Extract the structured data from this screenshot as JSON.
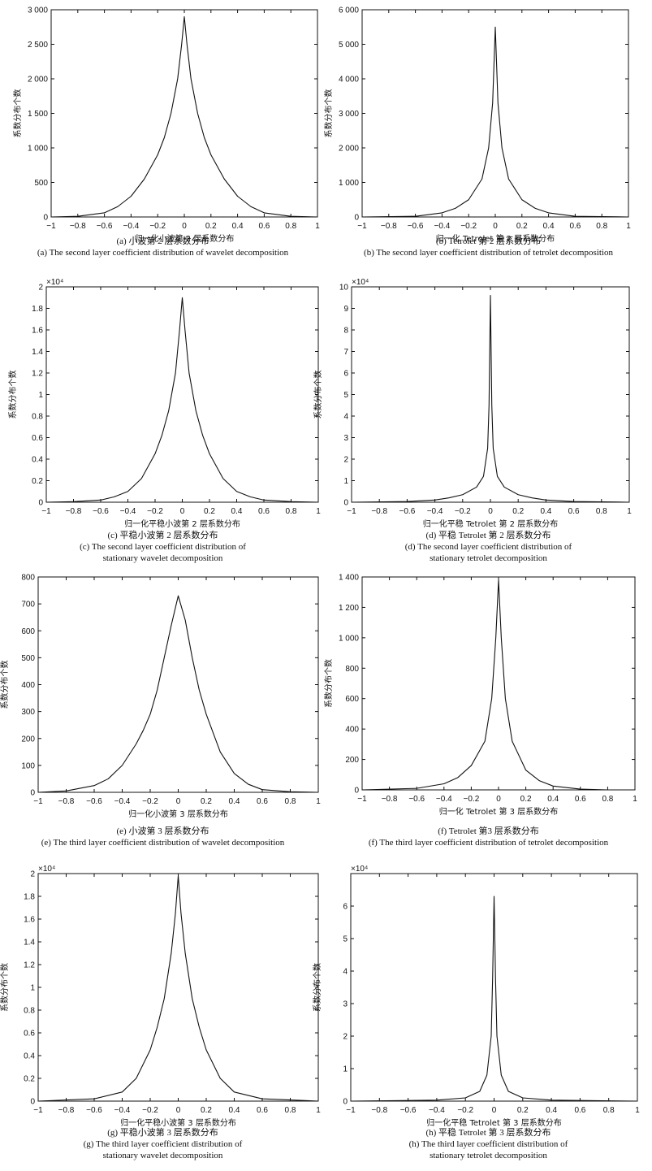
{
  "chart_data": [
    {
      "type": "line",
      "panel": "a",
      "xlabel": "归一化小波第 2 层系数分布",
      "ylabel": "系数分布个数",
      "xlim": [
        -1,
        1
      ],
      "ylim": [
        0,
        3000
      ],
      "xticks": [
        "−1",
        "−0.8",
        "−0.6",
        "−0.4",
        "−0.2",
        "0",
        "0.2",
        "0.4",
        "0.6",
        "0.8",
        "1"
      ],
      "yticks": [
        "0",
        "500",
        "1 000",
        "1 500",
        "2 000",
        "2 500",
        "3 000"
      ],
      "ytick_values": [
        0,
        500,
        1000,
        1500,
        2000,
        2500,
        3000
      ],
      "exponent": "",
      "caption_cn": "(a) 小波第 2 层系数分布",
      "caption_en": [
        "(a) The second layer coefficient distribution of wavelet decomposition"
      ],
      "x": [
        -1,
        -0.8,
        -0.6,
        -0.5,
        -0.4,
        -0.3,
        -0.2,
        -0.15,
        -0.1,
        -0.05,
        -0.02,
        0,
        0.02,
        0.05,
        0.1,
        0.15,
        0.2,
        0.3,
        0.4,
        0.5,
        0.6,
        0.8,
        1
      ],
      "y": [
        0,
        10,
        60,
        150,
        300,
        550,
        900,
        1150,
        1500,
        2000,
        2500,
        2900,
        2500,
        2000,
        1500,
        1150,
        900,
        550,
        300,
        150,
        60,
        10,
        0
      ]
    },
    {
      "type": "line",
      "panel": "b",
      "xlabel": "归一化 Tetrolet 第 2 层系数分布",
      "ylabel": "系数分布个数",
      "xlim": [
        -1,
        1
      ],
      "ylim": [
        0,
        6000
      ],
      "xticks": [
        "−1",
        "−0.8",
        "−0.6",
        "−0.4",
        "−0.2",
        "0",
        "0.2",
        "0.4",
        "0.6",
        "0.8",
        "1"
      ],
      "yticks": [
        "0",
        "1 000",
        "2 000",
        "3 000",
        "4 000",
        "5 000",
        "6 000"
      ],
      "ytick_values": [
        0,
        1000,
        2000,
        3000,
        4000,
        5000,
        6000
      ],
      "exponent": "",
      "caption_cn": "(b) Tetrolet 第 2 层系数分布",
      "caption_en": [
        "(b) The second layer coefficient distribution of tetrolet decomposition"
      ],
      "x": [
        -1,
        -0.6,
        -0.4,
        -0.3,
        -0.2,
        -0.1,
        -0.05,
        -0.02,
        0,
        0.02,
        0.05,
        0.1,
        0.2,
        0.3,
        0.4,
        0.6,
        1
      ],
      "y": [
        0,
        20,
        120,
        250,
        500,
        1100,
        2000,
        3300,
        5500,
        3300,
        2000,
        1100,
        500,
        250,
        120,
        20,
        0
      ]
    },
    {
      "type": "line",
      "panel": "c",
      "xlabel": "归一化平稳小波第 2 层系数分布",
      "ylabel": "系数分布个数",
      "xlim": [
        -1,
        1
      ],
      "ylim": [
        0,
        2
      ],
      "xticks": [
        "−1",
        "−0.8",
        "−0.6",
        "−0.4",
        "−0.2",
        "0",
        "0.2",
        "0.4",
        "0.6",
        "0.8",
        "1"
      ],
      "yticks": [
        "0",
        "0.2",
        "0.4",
        "0.6",
        "0.8",
        "1",
        "1.2",
        "1.4",
        "1.6",
        "1.8",
        "2"
      ],
      "ytick_values": [
        0,
        0.2,
        0.4,
        0.6,
        0.8,
        1,
        1.2,
        1.4,
        1.6,
        1.8,
        2
      ],
      "exponent": "×10⁴",
      "caption_cn": "(c) 平稳小波第 2 层系数分布",
      "caption_en": [
        "(c) The second layer coefficient distribution of",
        "stationary wavelet decomposition"
      ],
      "x": [
        -1,
        -0.8,
        -0.6,
        -0.5,
        -0.4,
        -0.3,
        -0.2,
        -0.15,
        -0.1,
        -0.05,
        -0.02,
        0,
        0.02,
        0.05,
        0.1,
        0.15,
        0.2,
        0.3,
        0.4,
        0.5,
        0.6,
        0.8,
        1
      ],
      "y": [
        0,
        0.005,
        0.02,
        0.05,
        0.1,
        0.22,
        0.45,
        0.62,
        0.85,
        1.2,
        1.6,
        1.9,
        1.6,
        1.2,
        0.85,
        0.62,
        0.45,
        0.22,
        0.1,
        0.05,
        0.02,
        0.005,
        0
      ]
    },
    {
      "type": "line",
      "panel": "d",
      "xlabel": "归一化平稳  Tetrolet 第 2 层系数分布",
      "ylabel": "系数分布个数",
      "xlim": [
        -1,
        1
      ],
      "ylim": [
        0,
        10
      ],
      "xticks": [
        "−1",
        "−0.8",
        "−0.6",
        "−0.4",
        "−0.2",
        "0",
        "0.2",
        "0.4",
        "0.6",
        "0.8",
        "1"
      ],
      "yticks": [
        "0",
        "1",
        "2",
        "3",
        "4",
        "5",
        "6",
        "7",
        "8",
        "9",
        "10"
      ],
      "ytick_values": [
        0,
        1,
        2,
        3,
        4,
        5,
        6,
        7,
        8,
        9,
        10
      ],
      "exponent": "×10⁴",
      "caption_cn": "(d) 平稳 Tetrolet 第 2 层系数分布",
      "caption_en": [
        "(d) The second layer coefficient distribution of",
        "stationary tetrolet decomposition"
      ],
      "x": [
        -1,
        -0.6,
        -0.4,
        -0.3,
        -0.2,
        -0.1,
        -0.05,
        -0.02,
        -0.01,
        0,
        0.01,
        0.02,
        0.05,
        0.1,
        0.2,
        0.3,
        0.4,
        0.6,
        1
      ],
      "y": [
        0,
        0.03,
        0.1,
        0.2,
        0.35,
        0.7,
        1.2,
        2.5,
        4.5,
        9.6,
        4.5,
        2.5,
        1.2,
        0.7,
        0.35,
        0.2,
        0.1,
        0.03,
        0
      ]
    },
    {
      "type": "line",
      "panel": "e",
      "xlabel": "归一化小波第 3 层系数分布",
      "ylabel": "系数分布个数",
      "xlim": [
        -1,
        1
      ],
      "ylim": [
        0,
        800
      ],
      "xticks": [
        "−1",
        "−0.8",
        "−0.6",
        "−0.4",
        "−0.2",
        "0",
        "0.2",
        "0.4",
        "0.6",
        "0.8",
        "1"
      ],
      "yticks": [
        "0",
        "100",
        "200",
        "300",
        "400",
        "500",
        "600",
        "700",
        "800"
      ],
      "ytick_values": [
        0,
        100,
        200,
        300,
        400,
        500,
        600,
        700,
        800
      ],
      "exponent": "",
      "caption_cn": "(e) 小波第 3 层系数分布",
      "caption_en": [
        "(e) The third layer coefficient distribution of wavelet decomposition"
      ],
      "x": [
        -1,
        -0.8,
        -0.6,
        -0.5,
        -0.4,
        -0.3,
        -0.25,
        -0.2,
        -0.15,
        -0.1,
        -0.05,
        0,
        0.05,
        0.1,
        0.15,
        0.2,
        0.25,
        0.3,
        0.4,
        0.5,
        0.6,
        0.8,
        1
      ],
      "y": [
        0,
        5,
        25,
        50,
        100,
        180,
        230,
        290,
        380,
        500,
        620,
        730,
        640,
        500,
        380,
        290,
        220,
        150,
        70,
        30,
        10,
        2,
        0
      ]
    },
    {
      "type": "line",
      "panel": "f",
      "xlabel": "归一化 Tetrolet 第 3 层系数分布",
      "ylabel": "系数分布个数",
      "xlim": [
        -1,
        1
      ],
      "ylim": [
        0,
        1400
      ],
      "xticks": [
        "−1",
        "−0.8",
        "−0.6",
        "−0.4",
        "−0.2",
        "0",
        "0.2",
        "0.4",
        "0.6",
        "0.8",
        "1"
      ],
      "yticks": [
        "0",
        "200",
        "400",
        "600",
        "800",
        "1 000",
        "1 200",
        "1 400"
      ],
      "ytick_values": [
        0,
        200,
        400,
        600,
        800,
        1000,
        1200,
        1400
      ],
      "exponent": "",
      "caption_cn": "(f) Tetrolet 第3 层系数分布",
      "caption_en": [
        "(f) The third layer coefficient distribution of tetrolet decomposition"
      ],
      "x": [
        -1,
        -0.6,
        -0.4,
        -0.3,
        -0.2,
        -0.1,
        -0.05,
        -0.02,
        0,
        0.02,
        0.05,
        0.1,
        0.2,
        0.3,
        0.4,
        0.6,
        0.8,
        1
      ],
      "y": [
        0,
        10,
        40,
        80,
        160,
        320,
        600,
        1000,
        1380,
        1000,
        600,
        320,
        130,
        60,
        25,
        5,
        0,
        0
      ]
    },
    {
      "type": "line",
      "panel": "g",
      "xlabel": "归一化平稳小波第 3 层系数分布",
      "ylabel": "系数分布个数",
      "xlim": [
        -1,
        1
      ],
      "ylim": [
        0,
        2
      ],
      "xticks": [
        "−1",
        "−0.8",
        "−0.6",
        "−0.4",
        "−0.2",
        "0",
        "0.2",
        "0.4",
        "0.6",
        "0.8",
        "1"
      ],
      "yticks": [
        "0",
        "0.2",
        "0.4",
        "0.6",
        "0.8",
        "1",
        "1.2",
        "1.4",
        "1.6",
        "1.8",
        "2"
      ],
      "ytick_values": [
        0,
        0.2,
        0.4,
        0.6,
        0.8,
        1,
        1.2,
        1.4,
        1.6,
        1.8,
        2
      ],
      "exponent": "×10⁴",
      "caption_cn": "(g) 平稳小波第 3 层系数分布",
      "caption_en": [
        "(g) The third layer coefficient distribution of",
        "stationary wavelet decomposition"
      ],
      "x": [
        -1,
        -0.6,
        -0.4,
        -0.3,
        -0.2,
        -0.15,
        -0.1,
        -0.05,
        -0.02,
        0,
        0.02,
        0.05,
        0.1,
        0.15,
        0.2,
        0.3,
        0.4,
        0.6,
        1
      ],
      "y": [
        0,
        0.02,
        0.08,
        0.2,
        0.45,
        0.65,
        0.9,
        1.3,
        1.65,
        1.98,
        1.65,
        1.3,
        0.9,
        0.65,
        0.45,
        0.2,
        0.08,
        0.02,
        0
      ]
    },
    {
      "type": "line",
      "panel": "h",
      "xlabel": "归一化平稳 Tetrolet 第 3 层系数分布",
      "ylabel": "系数分布个数",
      "xlim": [
        -1,
        1
      ],
      "ylim": [
        0,
        7
      ],
      "xticks": [
        "−1",
        "−0.8",
        "−0.6",
        "−0.4",
        "−0.2",
        "0",
        "0.2",
        "0.4",
        "0.6",
        "0.8",
        "1"
      ],
      "yticks": [
        "0",
        "1",
        "2",
        "3",
        "4",
        "5",
        "6"
      ],
      "ytick_values": [
        0,
        1,
        2,
        3,
        4,
        5,
        6
      ],
      "exponent": "×10⁴",
      "caption_cn": "(h) 平稳 Tetrolet 第 3 层系数分布",
      "caption_en": [
        "(h) The third layer coefficient distribution of",
        "stationary tetrolet decomposition"
      ],
      "x": [
        -1,
        -0.4,
        -0.2,
        -0.1,
        -0.05,
        -0.02,
        -0.01,
        0,
        0.01,
        0.02,
        0.05,
        0.1,
        0.2,
        0.4,
        1
      ],
      "y": [
        0,
        0.03,
        0.1,
        0.3,
        0.8,
        2.0,
        3.8,
        6.3,
        3.8,
        2.0,
        0.8,
        0.3,
        0.1,
        0.03,
        0
      ]
    }
  ]
}
